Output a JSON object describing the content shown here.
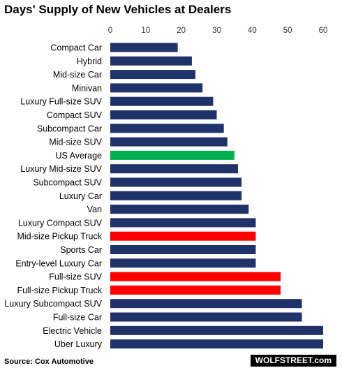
{
  "chart_data": {
    "type": "bar",
    "orientation": "horizontal",
    "title": "Days' Supply of New Vehicles at Dealers",
    "xlim": [
      0,
      60
    ],
    "xticks": [
      "0",
      "10",
      "20",
      "30",
      "40",
      "50",
      "60"
    ],
    "grid": false,
    "categories": [
      "Compact Car",
      "Hybrid",
      "Mid-size Car",
      "Minivan",
      "Luxury Full-size SUV",
      "Compact SUV",
      "Subcompact Car",
      "Mid-size SUV",
      "US Average",
      "Luxury Mid-size SUV",
      "Subcompact SUV",
      "Luxury Car",
      "Van",
      "Luxury Compact SUV",
      "Mid-size Pickup Truck",
      "Sports Car",
      "Entry-level Luxury Car",
      "Full-size SUV",
      "Full-size Pickup Truck",
      "Luxury Subcompact SUV",
      "Full-size Car",
      "Electric Vehicle",
      "Uber Luxury"
    ],
    "values": [
      19,
      23,
      24,
      26,
      29,
      30,
      32,
      33,
      35,
      36,
      37,
      37,
      39,
      41,
      41,
      41,
      41,
      48,
      48,
      54,
      54,
      60,
      60
    ],
    "bar_colors": [
      "#1f3269",
      "#1f3269",
      "#1f3269",
      "#1f3269",
      "#1f3269",
      "#1f3269",
      "#1f3269",
      "#1f3269",
      "#00b050",
      "#1f3269",
      "#1f3269",
      "#1f3269",
      "#1f3269",
      "#1f3269",
      "#ff0000",
      "#1f3269",
      "#1f3269",
      "#ff0000",
      "#ff0000",
      "#1f3269",
      "#1f3269",
      "#1f3269",
      "#1f3269"
    ],
    "source": "Source: Cox Automotive"
  },
  "branding": {
    "label": "WOLFSTREET.com"
  }
}
